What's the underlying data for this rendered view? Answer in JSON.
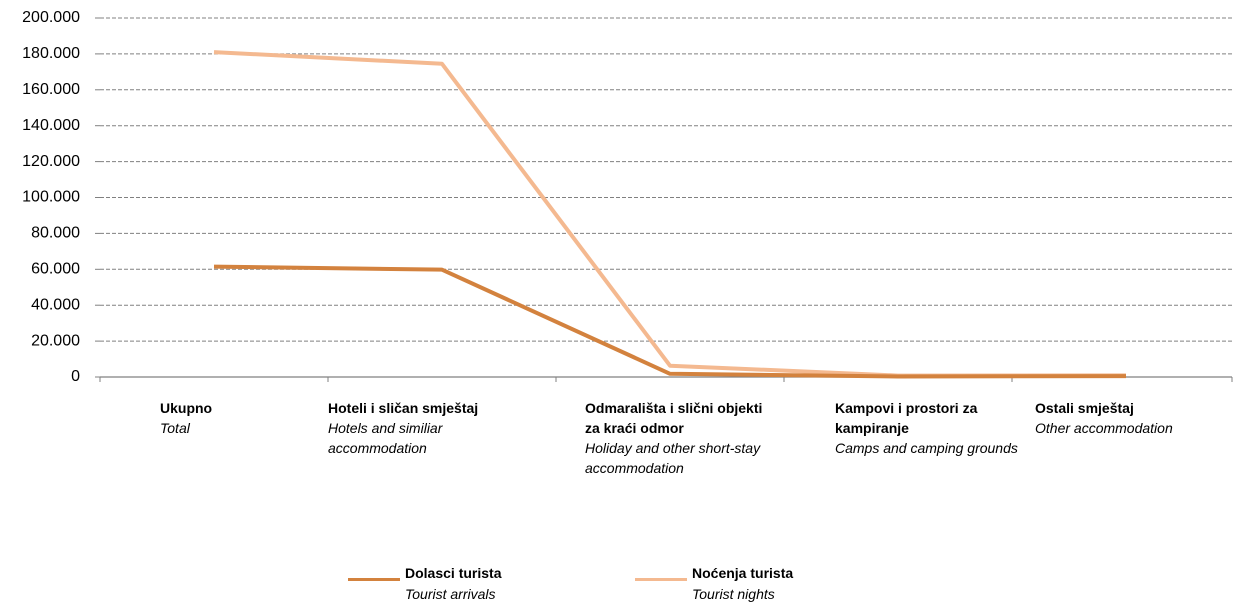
{
  "chart_data": {
    "type": "line",
    "categories": [
      "Ukupno",
      "Hoteli i sličan smještaj",
      "Odmarališta i slični objekti za kraći odmor",
      "Kampovi i prostori za kampiranje",
      "Ostali smještaj"
    ],
    "categories_en": [
      "Total",
      "Hotels and similiar accommodation",
      "Holiday and other short-stay accommodation",
      "Camps and camping grounds",
      "Other accommodation"
    ],
    "series": [
      {
        "name": "Dolasci turista",
        "name_en": "Tourist arrivals",
        "color": "#d3823e",
        "values": [
          61500,
          59800,
          1800,
          300,
          500
        ]
      },
      {
        "name": "Noćenja turista",
        "name_en": "Tourist nights",
        "color": "#f4b990",
        "values": [
          181000,
          174500,
          6300,
          800,
          900
        ]
      }
    ],
    "ylim": [
      0,
      200000
    ],
    "yticks": [
      0,
      {
        "value": 20000,
        "label": "20.000"
      },
      {
        "value": 40000,
        "label": "40.000"
      },
      {
        "value": 60000,
        "label": "60.000"
      },
      {
        "value": 80000,
        "label": "80.000"
      },
      {
        "value": 100000,
        "label": "100.000"
      },
      {
        "value": 120000,
        "label": "120.000"
      },
      {
        "value": 140000,
        "label": "140.000"
      },
      {
        "value": 160000,
        "label": "160.000"
      },
      {
        "value": 180000,
        "label": "180.000"
      },
      {
        "value": 200000,
        "label": "200.000"
      }
    ],
    "grid": true
  }
}
